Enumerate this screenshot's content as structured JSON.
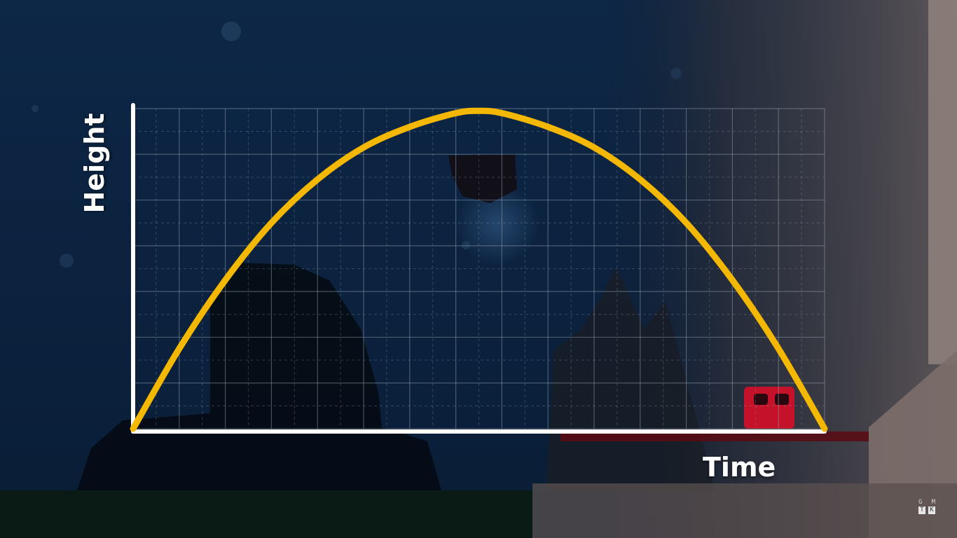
{
  "colors": {
    "curve": "#f5b800",
    "axis": "#ffffff",
    "grid": "#9aa4b4",
    "background": "#0c2340",
    "rock": "#8a7a74"
  },
  "watermark": {
    "line1": [
      "G",
      "M"
    ],
    "line2": [
      "T",
      "K"
    ]
  },
  "chart_data": {
    "type": "line",
    "xlabel": "Time",
    "ylabel": "Height",
    "grid": true,
    "xlim": [
      0,
      30
    ],
    "ylim": [
      0,
      14
    ],
    "series": [
      {
        "style": "parabola",
        "x": [
          0,
          2,
          4,
          6,
          8,
          10,
          12,
          14,
          15,
          16,
          18,
          20,
          22,
          24,
          26,
          28,
          30
        ],
        "y": [
          0,
          3.5,
          6.5,
          9.0,
          10.9,
          12.3,
          13.2,
          13.8,
          13.9,
          13.8,
          13.2,
          12.3,
          10.9,
          9.0,
          6.5,
          3.5,
          0
        ]
      }
    ]
  }
}
